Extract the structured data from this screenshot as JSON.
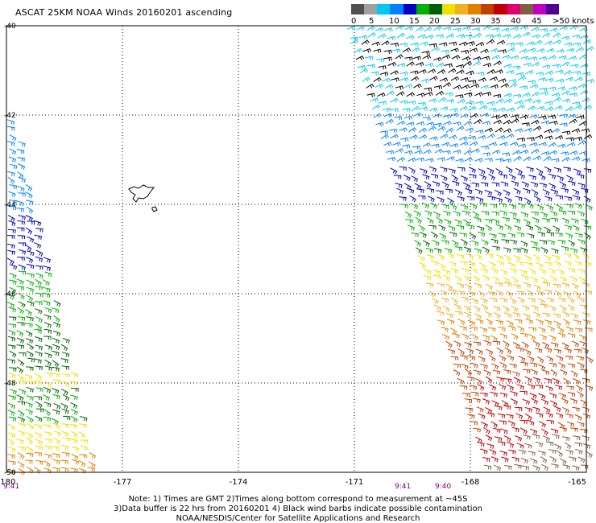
{
  "title": "ASCAT 25KM NOAA Winds 20160201 ascending",
  "legend": {
    "labels": [
      "0",
      "5",
      "10",
      "15",
      "20",
      "25",
      "30",
      "35",
      "40",
      "45",
      ">50 knots"
    ],
    "colors": [
      "#505050",
      "#a0a0a0",
      "#00c8f0",
      "#0080ff",
      "#0000c0",
      "#00b000",
      "#006000",
      "#f0e000",
      "#f0b020",
      "#e08000",
      "#c04000",
      "#c00000",
      "#e00070",
      "#806040",
      "#c000c0",
      "#500090"
    ]
  },
  "axes": {
    "x_labels": [
      "-180",
      "-177",
      "-174",
      "-171",
      "-168",
      "-165"
    ],
    "y_labels": [
      "-40",
      "-42",
      "-44",
      "-46",
      "-48",
      "-50"
    ],
    "lon_range": [
      -180,
      -165
    ],
    "lat_range": [
      -50,
      -40
    ]
  },
  "times": {
    "left": "9:41",
    "right_a": "9:41",
    "right_b": "9:40"
  },
  "notes": {
    "line1": "Note: 1) Times are GMT 2)Times along bottom correspond to measurement at ~45S",
    "line2": "3)Data buffer is 22 hrs from 20160201 4) Black wind barbs indicate possible contamination",
    "line3": "NOAA/NESDIS/Center for Satellite Applications and Research"
  }
}
